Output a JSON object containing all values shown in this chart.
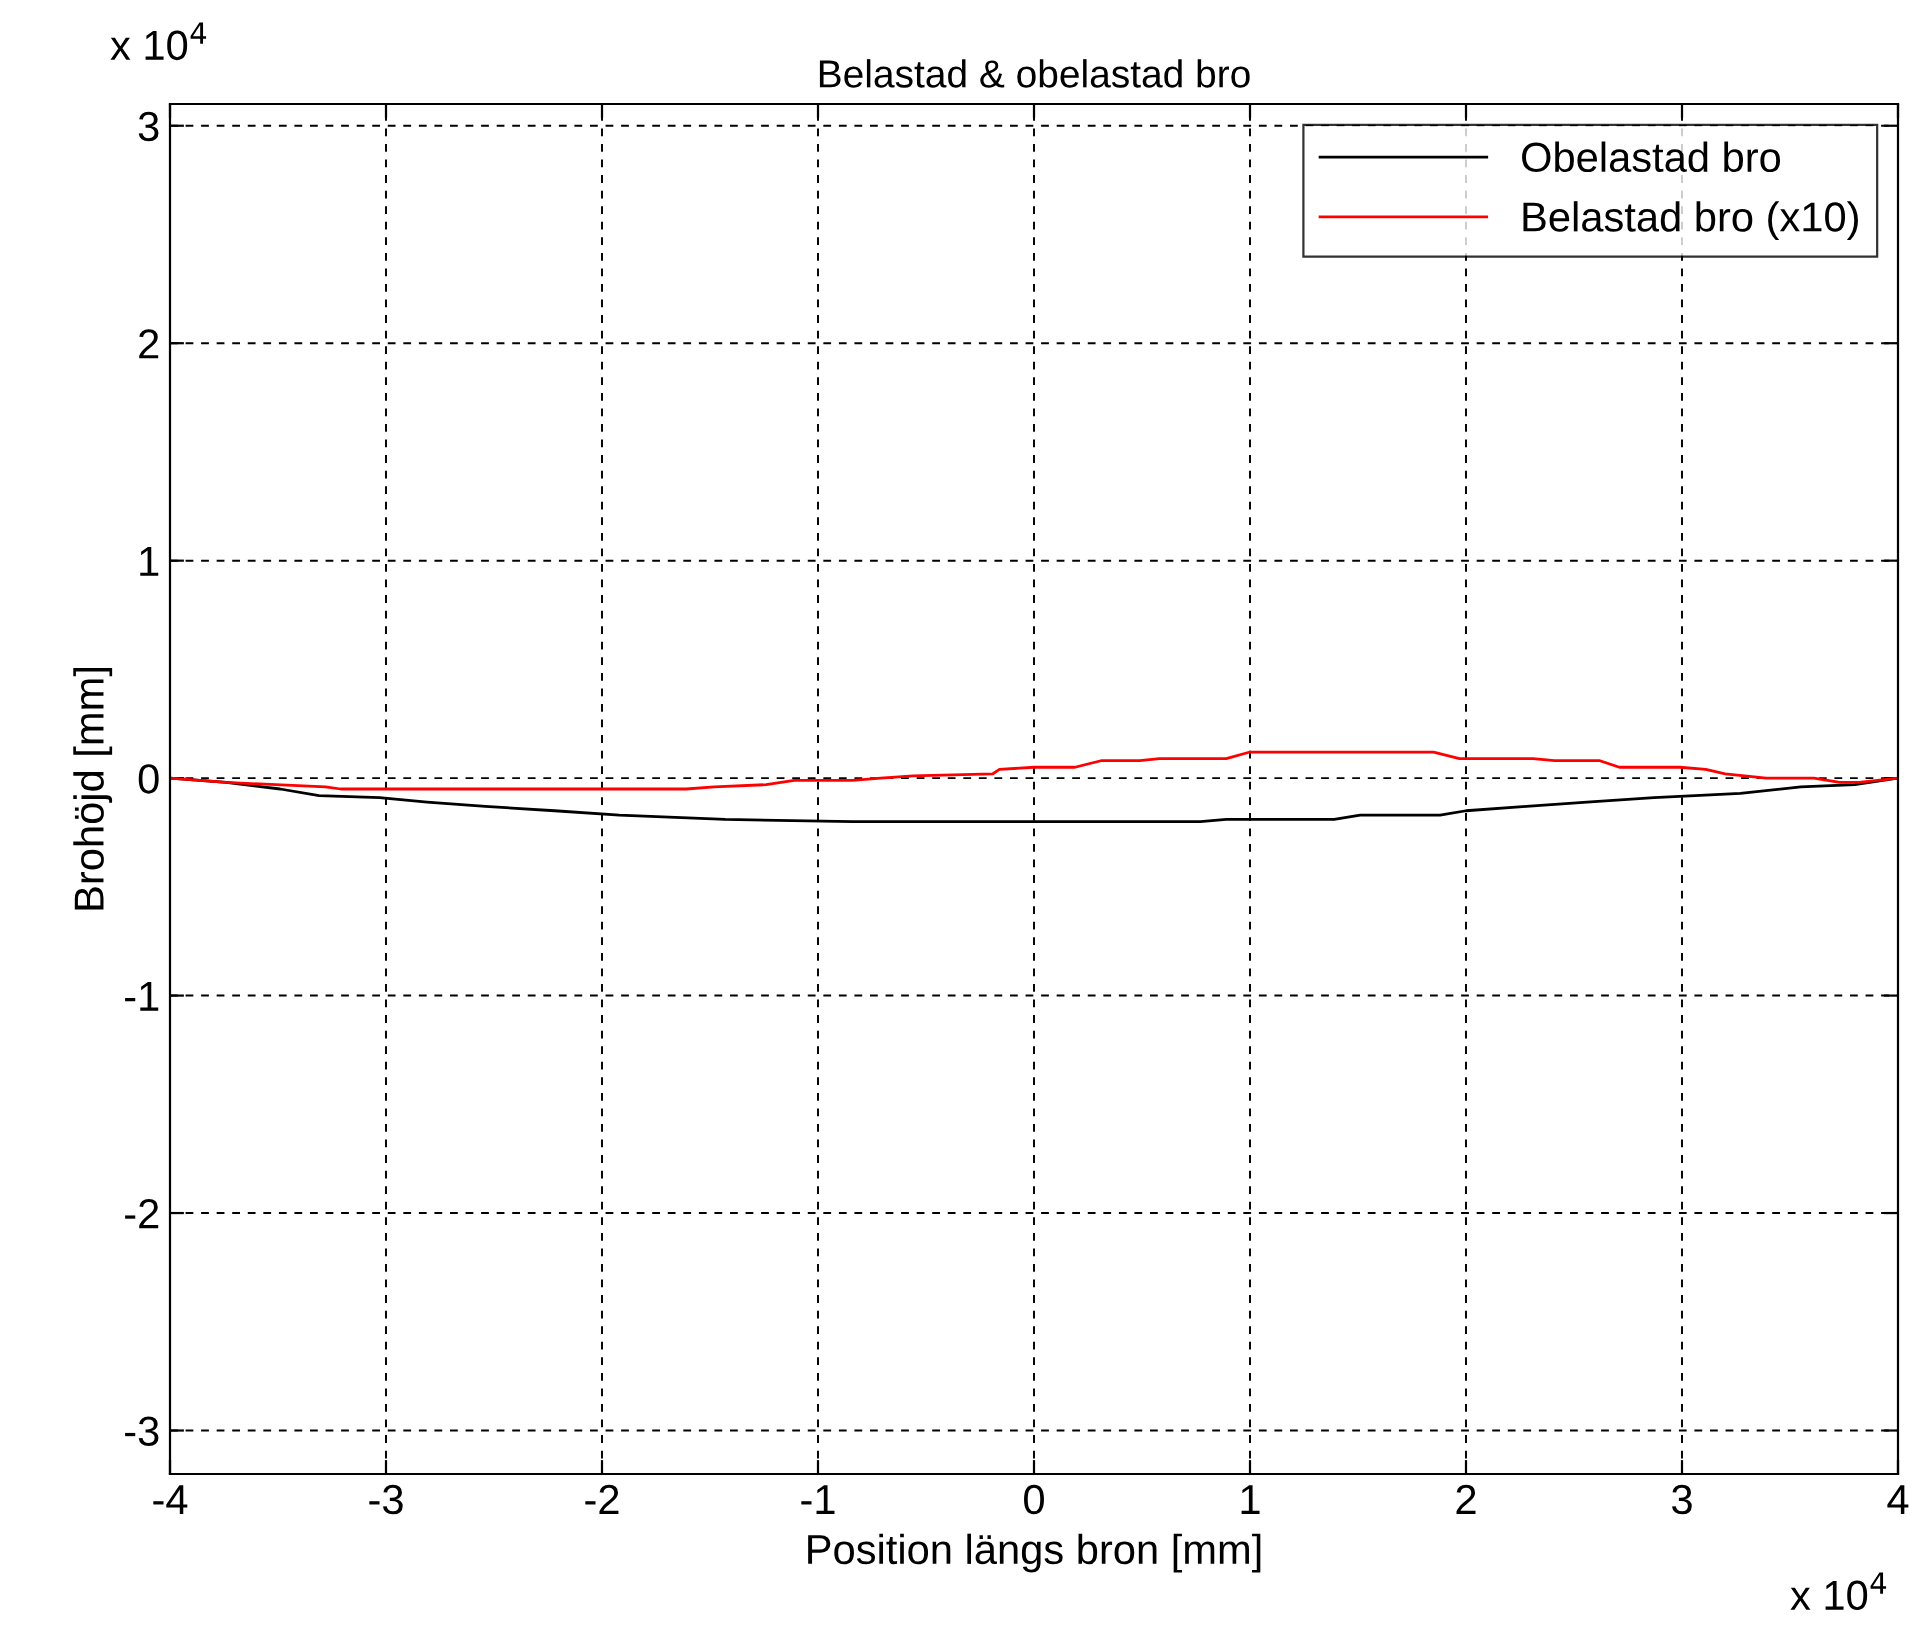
{
  "chart_data": {
    "type": "line",
    "title": "Belastad & obelastad bro",
    "xlabel": "Position längs bron [mm]",
    "ylabel": "Brohöjd [mm]",
    "annotations": [
      "x 10$^{4}$",
      "x 10$^{4}$"
    ],
    "series": [
      {
        "name": "Obelastad bro",
        "color": "#000000",
        "x": [
          -4,
          -3.74,
          -3.49,
          -3.31,
          -3.03,
          -2.81,
          -2.54,
          -2.22,
          -1.92,
          -1.43,
          -0.84,
          0.77,
          0.89,
          1.39,
          1.51,
          1.88,
          2,
          2.28,
          2.56,
          2.87,
          3.06,
          3.27,
          3.55,
          3.8,
          4
        ],
        "values": [
          0,
          -0.02,
          -0.05,
          -0.08,
          -0.09,
          -0.11,
          -0.13,
          -0.15,
          -0.17,
          -0.19,
          -0.2,
          -0.2,
          -0.19,
          -0.19,
          -0.17,
          -0.17,
          -0.15,
          -0.13,
          -0.11,
          -0.09,
          -0.08,
          -0.07,
          -0.04,
          -0.03,
          0
        ]
      },
      {
        "name": "Belastad bro (x10)",
        "color": "#ff0000",
        "x": [
          -4,
          -3.74,
          -3.28,
          -3.21,
          -1.61,
          -1.48,
          -1.24,
          -1.11,
          -0.84,
          -0.71,
          -0.56,
          -0.19,
          -0.16,
          0,
          0.19,
          0.31,
          0.49,
          0.58,
          0.89,
          1,
          1.85,
          1.97,
          2.31,
          2.41,
          2.62,
          2.71,
          2.99,
          3.11,
          3.2,
          3.39,
          3.61,
          3.73,
          3.82,
          4
        ],
        "values": [
          0,
          -0.02,
          -0.04,
          -0.05,
          -0.05,
          -0.04,
          -0.03,
          -0.01,
          -0.01,
          0,
          0.01,
          0.02,
          0.04,
          0.05,
          0.05,
          0.08,
          0.08,
          0.09,
          0.09,
          0.12,
          0.12,
          0.09,
          0.09,
          0.08,
          0.08,
          0.05,
          0.05,
          0.04,
          0.02,
          0,
          0,
          -0.02,
          -0.02,
          0
        ]
      }
    ],
    "xlim": [
      -4,
      4
    ],
    "ylim": [
      -3.2,
      3.1
    ],
    "xticks": [
      -4,
      -3,
      -2,
      -1,
      0,
      1,
      2,
      3,
      4
    ],
    "yticks": [
      -3,
      -2,
      -1,
      0,
      1,
      2,
      3
    ],
    "grid": true,
    "legend": "top right",
    "line_style": "solid",
    "marker": "none"
  }
}
